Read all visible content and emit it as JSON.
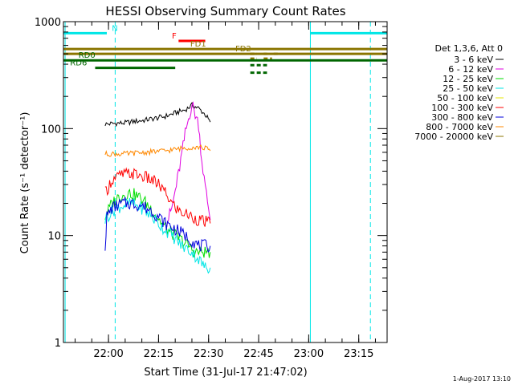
{
  "chart_data": {
    "type": "line",
    "title": "HESSI Observing Summary Count Rates",
    "xlabel": "Start Time (31-Jul-17 21:47:02)",
    "ylabel": "Count Rate (s⁻¹ detector⁻¹)",
    "yscale": "log",
    "ylim": [
      1,
      1000
    ],
    "xlim_minutes": [
      -0.5,
      96.5
    ],
    "x_ticks": [
      {
        "label": "22:00",
        "min": 13
      },
      {
        "label": "22:15",
        "min": 28
      },
      {
        "label": "22:30",
        "min": 43
      },
      {
        "label": "22:45",
        "min": 58
      },
      {
        "label": "23:00",
        "min": 73
      },
      {
        "label": "23:15",
        "min": 88
      }
    ],
    "y_ticks": [
      {
        "label": "1",
        "v": 1
      },
      {
        "label": "10",
        "v": 10
      },
      {
        "label": "100",
        "v": 100
      },
      {
        "label": "1000",
        "v": 1000
      }
    ],
    "legend_header": "Det 1,3,6, Att 0",
    "legend_placement": "right",
    "series": [
      {
        "name": "3 - 6 keV",
        "color": "#000000",
        "points": [
          [
            12,
            110
          ],
          [
            15,
            112
          ],
          [
            18,
            113
          ],
          [
            21,
            117
          ],
          [
            24,
            120
          ],
          [
            27,
            125
          ],
          [
            30,
            130
          ],
          [
            33,
            140
          ],
          [
            36,
            150
          ],
          [
            38,
            165
          ],
          [
            40,
            155
          ],
          [
            42,
            135
          ],
          [
            43.5,
            115
          ]
        ]
      },
      {
        "name": "6 - 12 keV",
        "color": "#e000e0",
        "points": [
          [
            30,
            12
          ],
          [
            32,
            18
          ],
          [
            34,
            38
          ],
          [
            36,
            90
          ],
          [
            38,
            170
          ],
          [
            40,
            110
          ],
          [
            41,
            50
          ],
          [
            42,
            28
          ],
          [
            43,
            18
          ],
          [
            43.5,
            14
          ]
        ]
      },
      {
        "name": "12 - 25 keV",
        "color": "#00dd00",
        "points": [
          [
            12,
            15
          ],
          [
            14,
            20
          ],
          [
            16,
            23
          ],
          [
            19,
            25
          ],
          [
            21,
            24
          ],
          [
            23,
            22
          ],
          [
            25,
            19
          ],
          [
            27,
            16
          ],
          [
            29,
            13
          ],
          [
            31,
            11
          ],
          [
            33,
            10
          ],
          [
            35,
            9
          ],
          [
            37,
            8
          ],
          [
            39,
            7
          ],
          [
            41,
            7
          ],
          [
            43.5,
            7
          ]
        ]
      },
      {
        "name": "25 - 50 keV",
        "color": "#00e6e6",
        "points": [
          [
            12,
            14
          ],
          [
            14,
            17
          ],
          [
            17,
            19
          ],
          [
            20,
            20
          ],
          [
            23,
            18
          ],
          [
            26,
            15
          ],
          [
            29,
            12
          ],
          [
            32,
            10
          ],
          [
            35,
            8
          ],
          [
            38,
            7
          ],
          [
            40,
            6
          ],
          [
            42,
            5
          ],
          [
            43.5,
            5
          ]
        ]
      },
      {
        "name": "50 - 100 keV",
        "color": "#e6e600",
        "points": []
      },
      {
        "name": "100 - 300 keV",
        "color": "#ff0000",
        "points": [
          [
            12,
            25
          ],
          [
            14,
            33
          ],
          [
            17,
            37
          ],
          [
            20,
            38
          ],
          [
            23,
            36
          ],
          [
            26,
            33
          ],
          [
            28,
            30
          ],
          [
            30,
            25
          ],
          [
            32,
            20
          ],
          [
            34,
            17
          ],
          [
            36,
            16
          ],
          [
            38,
            15
          ],
          [
            40,
            14
          ],
          [
            43.5,
            13
          ]
        ]
      },
      {
        "name": "300 - 800 keV",
        "color": "#0000dd",
        "points": [
          [
            12,
            8
          ],
          [
            12.5,
            15
          ],
          [
            14,
            18
          ],
          [
            17,
            20
          ],
          [
            20,
            20
          ],
          [
            23,
            19
          ],
          [
            26,
            17
          ],
          [
            28,
            15
          ],
          [
            30,
            13
          ],
          [
            32,
            12
          ],
          [
            34,
            11
          ],
          [
            36,
            10
          ],
          [
            38,
            9
          ],
          [
            40,
            8
          ],
          [
            43.5,
            8
          ]
        ]
      },
      {
        "name": "800 - 7000 keV",
        "color": "#ff8800",
        "points": [
          [
            12,
            58
          ],
          [
            15,
            58
          ],
          [
            18,
            58
          ],
          [
            21,
            59
          ],
          [
            24,
            60
          ],
          [
            27,
            61
          ],
          [
            30,
            62
          ],
          [
            33,
            64
          ],
          [
            36,
            66
          ],
          [
            38,
            67
          ],
          [
            40,
            67
          ],
          [
            42,
            66
          ],
          [
            43.5,
            62
          ]
        ]
      },
      {
        "name": "7000 - 20000 keV",
        "color": "#8b7500",
        "points": []
      }
    ],
    "flag_bars": [
      {
        "label": "N",
        "color": "#00e6e6",
        "v": 780,
        "segments": [
          [
            -0.5,
            12.5
          ],
          [
            73.5,
            96.5
          ]
        ],
        "label_at_min": 14
      },
      {
        "label": "F",
        "color": "#ff0000",
        "v": 660,
        "segments": [
          [
            34,
            42
          ]
        ],
        "label_at_min": 32
      },
      {
        "label": "FD1",
        "color": "#8b7500",
        "v": 555,
        "segments": [
          [
            -0.5,
            96.5
          ]
        ],
        "dashed": [
          [
            55.5,
            57.5
          ],
          [
            59.5,
            60.5
          ],
          [
            62.5,
            64
          ]
        ],
        "label_at_min": 37.5
      },
      {
        "label": "FD2",
        "color": "#8b7500",
        "v": 500,
        "segments": [
          [
            -0.5,
            96.5
          ]
        ],
        "dashed": [
          [
            55.5,
            57.5
          ],
          [
            59.5,
            62
          ]
        ],
        "label_at_min": 51
      },
      {
        "label": "RD0",
        "color": "#006600",
        "v": 435,
        "segments": [
          [
            -0.5,
            96.5
          ]
        ],
        "dashed": [
          [
            55.5,
            60.5
          ]
        ],
        "label_at_min": 4
      },
      {
        "label": "RD6",
        "color": "#006600",
        "v": 370,
        "segments": [
          [
            9,
            33
          ]
        ],
        "dashed": [
          [
            55.5,
            60.5
          ]
        ],
        "label_at_min": 1.5
      }
    ],
    "vlines": [
      {
        "min": 0,
        "style": "solid"
      },
      {
        "min": 15,
        "style": "dashed"
      },
      {
        "min": 73.5,
        "style": "solid"
      },
      {
        "min": 91.5,
        "style": "dashed"
      }
    ],
    "vline_color": "#00e6e6"
  },
  "footer_date": "1-Aug-2017 13:10"
}
